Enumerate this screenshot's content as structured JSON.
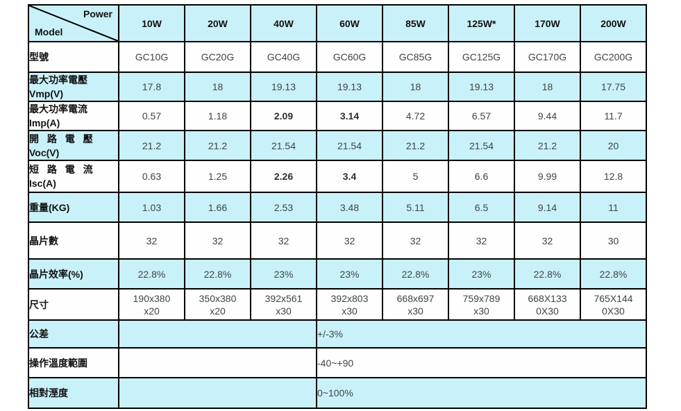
{
  "table": {
    "corner": {
      "top_right": "Power",
      "bottom_left": "Model"
    },
    "columns": [
      "10W",
      "20W",
      "40W",
      "60W",
      "85W",
      "125W*",
      "170W",
      "200W"
    ],
    "rows": [
      {
        "id": "model-number",
        "label_zh": "型號",
        "values": [
          "GC10G",
          "GC20G",
          "GC40G",
          "GC60G",
          "GC85G",
          "GC125G",
          "GC170G",
          "GC200G"
        ]
      },
      {
        "id": "vmp",
        "label_zh": "最大功率電壓",
        "label_en": "Vmp(V)",
        "values": [
          "17.8",
          "18",
          "19.13",
          "19.13",
          "18",
          "19.13",
          "18",
          "17.75"
        ]
      },
      {
        "id": "imp",
        "label_zh": "最大功率電流",
        "label_en": "Imp(A)",
        "values": [
          "0.57",
          "1.18",
          "2.09",
          "3.14",
          "4.72",
          "6.57",
          "9.44",
          "11.7"
        ],
        "bold_cols": [
          2,
          3
        ]
      },
      {
        "id": "voc",
        "label_zh": "開 路 電 壓",
        "label_en": "Voc(V)",
        "values": [
          "21.2",
          "21.2",
          "21.54",
          "21.54",
          "21.2",
          "21.54",
          "21.2",
          "20"
        ]
      },
      {
        "id": "isc",
        "label_zh": "短 路 電 流",
        "label_en": "Isc(A)",
        "values": [
          "0.63",
          "1.25",
          "2.26",
          "3.4",
          "5",
          "6.6",
          "9.99",
          "12.8"
        ],
        "bold_cols": [
          2,
          3
        ]
      },
      {
        "id": "weight",
        "label_zh": "重量(KG)",
        "values": [
          "1.03",
          "1.66",
          "2.53",
          "3.48",
          "5.11",
          "6.5",
          "9.14",
          "11"
        ]
      },
      {
        "id": "cell-count",
        "label_zh": "晶片數",
        "values": [
          "32",
          "32",
          "32",
          "32",
          "32",
          "32",
          "32",
          "30"
        ]
      },
      {
        "id": "cell-efficiency",
        "label_zh": "晶片效率(%)",
        "values": [
          "22.8%",
          "22.8%",
          "23%",
          "23%",
          "22.8%",
          "23%",
          "22.8%",
          "22.8%"
        ]
      },
      {
        "id": "dimensions",
        "label_zh": "尺寸",
        "values": [
          [
            "190x380",
            "x20"
          ],
          [
            "350x380",
            "x20"
          ],
          [
            "392x561",
            "x30"
          ],
          [
            "392x803",
            "x30"
          ],
          [
            "668x697",
            "x30"
          ],
          [
            "759x789",
            "x30"
          ],
          [
            "668X133",
            "0X30"
          ],
          [
            "765X144",
            "0X30"
          ]
        ]
      },
      {
        "id": "tolerance",
        "label_zh": "公差",
        "merged_value": "+/-3%"
      },
      {
        "id": "operating-temp",
        "label_zh": "操作溫度範圍",
        "merged_value": "-40~+90"
      },
      {
        "id": "humidity",
        "label_zh": "相對溼度",
        "merged_value": "0~100%"
      }
    ],
    "colors": {
      "band": "#c9f1f9",
      "border": "#000000",
      "value_text": "#3e4447",
      "label_text": "#111111"
    }
  }
}
